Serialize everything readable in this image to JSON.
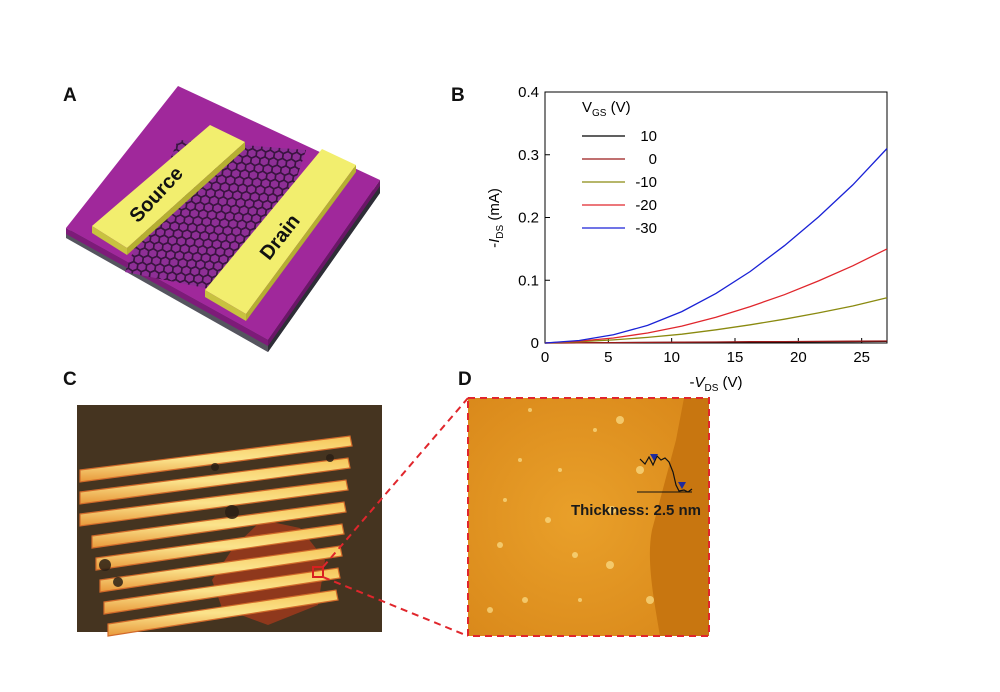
{
  "panels": {
    "a": {
      "letter": "A",
      "source_label": "Source",
      "drain_label": "Drain"
    },
    "b": {
      "letter": "B"
    },
    "c": {
      "letter": "C"
    },
    "d": {
      "letter": "D",
      "thickness_label": "Thickness: 2.5 nm"
    }
  },
  "colors": {
    "substrate_purple": "#a0289b",
    "substrate_dark": "#4a4a55",
    "electrode": "#f2ee6e",
    "hex_fill": "#8e2f96",
    "micrograph_bg": "#4b3a23",
    "afm_orange": "#e39420"
  },
  "chart_data": {
    "type": "line",
    "title": "",
    "xlabel": "-V_DS (V)",
    "ylabel": "-I_DS (mA)",
    "xlim": [
      0,
      27
    ],
    "ylim": [
      0,
      0.4
    ],
    "x_ticks": [
      0,
      5,
      10,
      15,
      20,
      25
    ],
    "y_ticks": [
      0,
      0.1,
      0.2,
      0.3,
      0.4
    ],
    "grid": false,
    "legend_title": "V_GS (V)",
    "legend_position": "top-left",
    "x": [
      0,
      2.7,
      5.4,
      8.1,
      10.8,
      13.5,
      16.2,
      18.9,
      21.6,
      24.3,
      27
    ],
    "series": [
      {
        "name": "10",
        "color": "#000000",
        "values": [
          0,
          0.0002,
          0.0005,
          0.0008,
          0.001,
          0.0013,
          0.0015,
          0.0018,
          0.002,
          0.0023,
          0.0025
        ]
      },
      {
        "name": "0",
        "color": "#9b1b1b",
        "values": [
          0,
          0.0003,
          0.0006,
          0.001,
          0.0013,
          0.0016,
          0.002,
          0.0023,
          0.0026,
          0.0029,
          0.0032
        ]
      },
      {
        "name": "-10",
        "color": "#8a8a10",
        "values": [
          0,
          0.002,
          0.005,
          0.009,
          0.014,
          0.021,
          0.029,
          0.038,
          0.048,
          0.059,
          0.072
        ]
      },
      {
        "name": "-20",
        "color": "#e0262c",
        "values": [
          0,
          0.003,
          0.008,
          0.016,
          0.027,
          0.041,
          0.058,
          0.077,
          0.099,
          0.123,
          0.15
        ]
      },
      {
        "name": "-30",
        "color": "#1a22d6",
        "values": [
          0,
          0.004,
          0.013,
          0.028,
          0.05,
          0.079,
          0.114,
          0.155,
          0.201,
          0.252,
          0.31
        ]
      }
    ]
  }
}
